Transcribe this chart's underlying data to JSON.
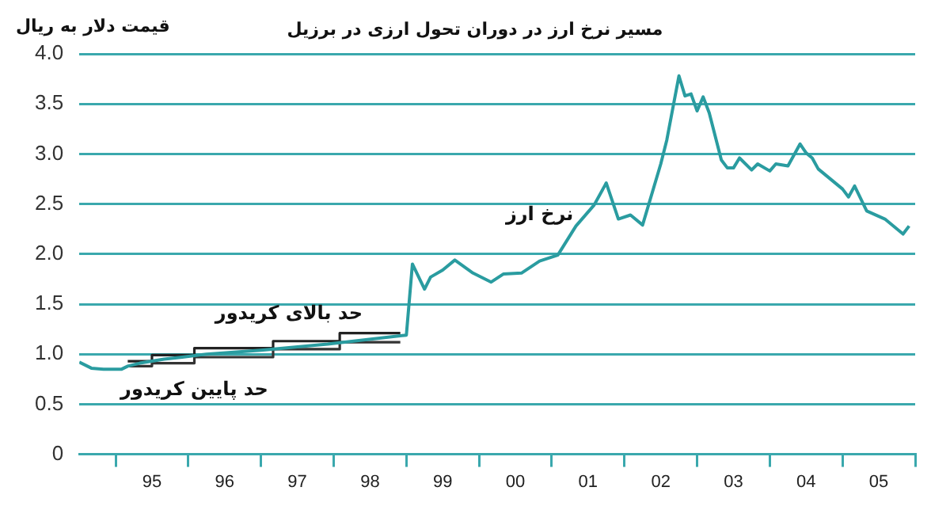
{
  "chart_data": {
    "type": "line",
    "title": "مسیر نرخ ارز در دوران تحول ارزی در برزیل",
    "ylabel": "قیمت دلار به ریال",
    "xlim": [
      "1994-07-01",
      "2006-01-01"
    ],
    "xticks": [
      {
        "value": "1995-01-01",
        "label": null
      },
      {
        "value": "1995-07-01",
        "label": "95"
      },
      {
        "value": "1996-01-01",
        "label": null
      },
      {
        "value": "1996-07-01",
        "label": "96"
      },
      {
        "value": "1997-01-01",
        "label": null
      },
      {
        "value": "1997-07-01",
        "label": "97"
      },
      {
        "value": "1998-01-01",
        "label": null
      },
      {
        "value": "1998-07-01",
        "label": "98"
      },
      {
        "value": "1999-01-01",
        "label": null
      },
      {
        "value": "1999-07-01",
        "label": "99"
      },
      {
        "value": "2000-01-01",
        "label": null
      },
      {
        "value": "2000-07-01",
        "label": "00"
      },
      {
        "value": "2001-01-01",
        "label": null
      },
      {
        "value": "2001-07-01",
        "label": "01"
      },
      {
        "value": "2002-01-01",
        "label": null
      },
      {
        "value": "2002-07-01",
        "label": "02"
      },
      {
        "value": "2003-01-01",
        "label": null
      },
      {
        "value": "2003-07-01",
        "label": "03"
      },
      {
        "value": "2004-01-01",
        "label": null
      },
      {
        "value": "2004-07-01",
        "label": "04"
      },
      {
        "value": "2005-01-01",
        "label": null
      },
      {
        "value": "2005-07-01",
        "label": "05"
      },
      {
        "value": "2006-01-01",
        "label": null
      }
    ],
    "ylim": [
      0,
      4
    ],
    "yticks": [
      0,
      0.5,
      {
        "value": 1,
        "label": "1.0"
      },
      1.5,
      {
        "value": 2,
        "label": "2.0"
      },
      2.5,
      {
        "value": 3,
        "label": "3.0"
      },
      3.5,
      {
        "value": 4,
        "label": "4.0"
      }
    ],
    "grid": "y",
    "legend": false,
    "marker": "none",
    "series": [
      {
        "name": "نرخ ارز",
        "color": "#2a9ca0",
        "x": [
          "1994-07",
          "1994-09",
          "1994-11",
          "1995-02",
          "1995-03",
          "1995-05",
          "1995-09",
          "1995-12",
          "1996-04",
          "1997-01",
          "1997-12",
          "1999-01",
          "1999-02",
          "1999-04",
          "1999-05",
          "1999-07",
          "1999-09",
          "1999-12",
          "2000-03",
          "2000-05",
          "2000-08",
          "2000-11",
          "2001-02",
          "2001-05",
          "2001-08",
          "2001-10",
          "2001-12",
          "2002-02",
          "2002-04",
          "2002-07",
          "2002-08",
          "2002-10",
          "2002-11",
          "2002-12",
          "2003-01",
          "2003-02",
          "2003-03",
          "2003-05",
          "2003-06",
          "2003-07",
          "2003-08",
          "2003-10",
          "2003-11",
          "2004-01",
          "2004-02",
          "2004-04",
          "2004-06",
          "2004-07",
          "2004-08",
          "2004-09",
          "2005-01",
          "2005-02",
          "2005-03",
          "2005-05",
          "2005-08",
          "2005-11",
          "2005-12"
        ],
        "values": [
          0.92,
          0.86,
          0.85,
          0.85,
          0.88,
          0.91,
          0.95,
          0.97,
          1.0,
          1.04,
          1.1,
          1.19,
          1.9,
          1.65,
          1.77,
          1.84,
          1.94,
          1.81,
          1.72,
          1.8,
          1.81,
          1.93,
          1.99,
          2.28,
          2.49,
          2.71,
          2.35,
          2.39,
          2.29,
          2.9,
          3.14,
          3.78,
          3.58,
          3.6,
          3.43,
          3.57,
          3.41,
          2.94,
          2.86,
          2.86,
          2.96,
          2.84,
          2.9,
          2.83,
          2.9,
          2.88,
          3.1,
          3.01,
          2.96,
          2.85,
          2.65,
          2.57,
          2.68,
          2.43,
          2.35,
          2.2,
          2.28
        ]
      },
      {
        "name": "حد بالای کریدور",
        "type": "step",
        "color": "#222222",
        "x": [
          "1995-03",
          "1995-07",
          "1996-02",
          "1997-03",
          "1998-02",
          "1998-12"
        ],
        "values": [
          0.93,
          0.99,
          1.06,
          1.13,
          1.21,
          1.21
        ]
      },
      {
        "name": "حد پایین کریدور",
        "type": "step",
        "color": "#333333",
        "x": [
          "1995-03",
          "1995-07",
          "1996-02",
          "1997-03",
          "1998-02",
          "1998-12"
        ],
        "values": [
          0.88,
          0.91,
          0.97,
          1.05,
          1.12,
          1.12
        ]
      }
    ]
  }
}
